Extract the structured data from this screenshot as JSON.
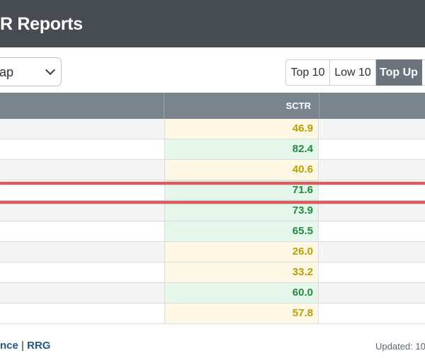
{
  "header": {
    "title": "R Reports"
  },
  "filter": {
    "selected": "ap"
  },
  "buttons": [
    {
      "label": "Top 10",
      "active": false
    },
    {
      "label": "Low 10",
      "active": false
    },
    {
      "label": "Top Up",
      "active": true
    }
  ],
  "table": {
    "columns": [
      "SCTR"
    ],
    "rows": [
      {
        "sctr": "46.9",
        "color": "yellow"
      },
      {
        "sctr": "82.4",
        "color": "green"
      },
      {
        "sctr": "40.6",
        "color": "yellow"
      },
      {
        "sctr": "71.6",
        "color": "green",
        "highlighted": true
      },
      {
        "sctr": "73.9",
        "color": "green"
      },
      {
        "sctr": "65.5",
        "color": "green"
      },
      {
        "sctr": "26.0",
        "color": "yellow"
      },
      {
        "sctr": "33.2",
        "color": "yellow"
      },
      {
        "sctr": "60.0",
        "color": "green"
      },
      {
        "sctr": "57.8",
        "color": "yellow"
      }
    ]
  },
  "footer": {
    "link1": "nce",
    "separator": "|",
    "link2": "RRG",
    "updated": "Updated: 10/"
  },
  "colors": {
    "header_bg": "#474c53",
    "table_header_bg": "#7a848c",
    "highlight": "#e0595b",
    "green_text": "#218a3e",
    "yellow_text": "#b8a000"
  }
}
